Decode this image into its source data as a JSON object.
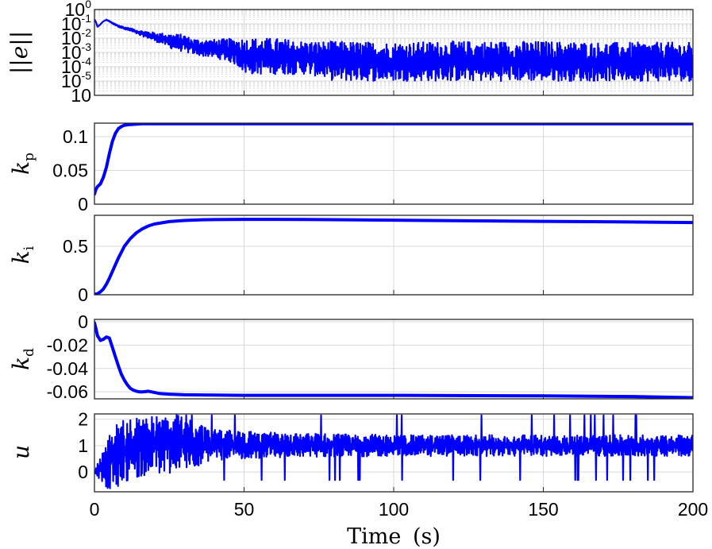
{
  "figure": {
    "xlabel": "Time",
    "xlabel_unit": "(s)"
  },
  "chart_data": [
    {
      "type": "line",
      "ylabel": "||e||",
      "yscale": "log",
      "xlim": [
        0,
        200
      ],
      "ylim": [
        1e-06,
        1
      ],
      "yticks": [
        {
          "base": "10",
          "exp": "0"
        },
        {
          "base": "10",
          "exp": "-1"
        },
        {
          "base": "10",
          "exp": "-2"
        },
        {
          "base": "10",
          "exp": "-3"
        },
        {
          "base": "10",
          "exp": "-4"
        },
        {
          "base": "10",
          "exp": "-5"
        },
        {
          "base": "10",
          "exp": ""
        }
      ],
      "grid": true,
      "color": "#0000ff",
      "series": [
        {
          "style": "dense-oscillation",
          "envelope_upper": {
            "x": [
              0,
              1,
              2,
              3,
              4,
              6,
              8,
              10,
              15,
              20,
              25,
              30,
              32,
              35,
              40,
              50,
              60,
              70,
              80,
              100,
              120,
              150,
              170,
              200
            ],
            "y": [
              0.2,
              0.06,
              0.09,
              0.15,
              0.2,
              0.12,
              0.08,
              0.06,
              0.035,
              0.025,
              0.02,
              0.018,
              0.01,
              0.008,
              0.008,
              0.01,
              0.01,
              0.006,
              0.006,
              0.005,
              0.006,
              0.006,
              0.005,
              0.005
            ]
          },
          "envelope_lower": {
            "x": [
              0,
              1,
              2,
              3,
              4,
              6,
              8,
              10,
              15,
              20,
              25,
              30,
              35,
              40,
              50,
              60,
              70,
              80,
              100,
              120,
              150,
              170,
              200
            ],
            "y": [
              0.2,
              0.06,
              0.09,
              0.15,
              0.18,
              0.1,
              0.06,
              0.04,
              0.015,
              0.006,
              0.002,
              0.001,
              0.0006,
              0.0004,
              3e-05,
              3e-05,
              3e-05,
              1e-05,
              1e-05,
              1e-05,
              1e-05,
              1e-05,
              1e-05
            ]
          }
        }
      ]
    },
    {
      "type": "line",
      "ylabel": "k",
      "ylabel_sub": "p",
      "xlim": [
        0,
        200
      ],
      "ylim": [
        0,
        0.12
      ],
      "yticks": [
        {
          "value": 0,
          "label": "0"
        },
        {
          "value": 0.05,
          "label": "0.05"
        },
        {
          "value": 0.1,
          "label": "0.1"
        }
      ],
      "grid": true,
      "color": "#0000ff",
      "series": [
        {
          "x": [
            0,
            0.5,
            1,
            2,
            3,
            4,
            5,
            6,
            7,
            8,
            9,
            10,
            12,
            14,
            16,
            18,
            20,
            30,
            50,
            100,
            150,
            200
          ],
          "y": [
            0.015,
            0.022,
            0.026,
            0.03,
            0.04,
            0.055,
            0.075,
            0.093,
            0.105,
            0.112,
            0.115,
            0.117,
            0.118,
            0.1185,
            0.119,
            0.119,
            0.119,
            0.119,
            0.119,
            0.119,
            0.119,
            0.119
          ]
        }
      ]
    },
    {
      "type": "line",
      "ylabel": "k",
      "ylabel_sub": "i",
      "xlim": [
        0,
        200
      ],
      "ylim": [
        0,
        0.82
      ],
      "yticks": [
        {
          "value": 0,
          "label": "0"
        },
        {
          "value": 0.5,
          "label": "0.5"
        }
      ],
      "grid": true,
      "color": "#0000ff",
      "series": [
        {
          "x": [
            0,
            1,
            2,
            3,
            4,
            5,
            6,
            7,
            8,
            10,
            12,
            14,
            16,
            18,
            20,
            25,
            30,
            35,
            40,
            50,
            60,
            70,
            80,
            100,
            120,
            150,
            175,
            200
          ],
          "y": [
            0.005,
            0.01,
            0.03,
            0.06,
            0.11,
            0.17,
            0.24,
            0.31,
            0.38,
            0.5,
            0.58,
            0.64,
            0.68,
            0.71,
            0.73,
            0.755,
            0.767,
            0.773,
            0.776,
            0.778,
            0.778,
            0.777,
            0.775,
            0.77,
            0.765,
            0.758,
            0.752,
            0.745
          ]
        }
      ]
    },
    {
      "type": "line",
      "ylabel": "k",
      "ylabel_sub": "d",
      "xlim": [
        0,
        200
      ],
      "ylim": [
        -0.066,
        0.002
      ],
      "yticks": [
        {
          "value": 0,
          "label": "0"
        },
        {
          "value": -0.02,
          "label": "-0.02"
        },
        {
          "value": -0.04,
          "label": "-0.04"
        },
        {
          "value": -0.06,
          "label": "-0.06"
        }
      ],
      "grid": true,
      "color": "#0000ff",
      "series": [
        {
          "x": [
            0,
            0.5,
            1,
            1.5,
            2,
            3,
            4,
            5,
            6,
            7,
            8,
            9,
            10,
            11,
            12,
            13,
            14,
            15,
            16,
            17,
            18,
            20,
            22,
            25,
            30,
            40,
            50,
            70,
            100,
            120,
            150,
            180,
            200
          ],
          "y": [
            -0.001,
            -0.006,
            -0.012,
            -0.014,
            -0.016,
            -0.015,
            -0.013,
            -0.014,
            -0.022,
            -0.03,
            -0.038,
            -0.045,
            -0.05,
            -0.054,
            -0.057,
            -0.0585,
            -0.0595,
            -0.06,
            -0.06,
            -0.0598,
            -0.0595,
            -0.0605,
            -0.0615,
            -0.062,
            -0.0625,
            -0.0628,
            -0.063,
            -0.063,
            -0.063,
            -0.0632,
            -0.0635,
            -0.064,
            -0.065
          ]
        }
      ]
    },
    {
      "type": "line",
      "ylabel": "u",
      "xlim": [
        0,
        200
      ],
      "ylim": [
        -0.75,
        2.2
      ],
      "yticks": [
        {
          "value": 0,
          "label": "0"
        },
        {
          "value": 1,
          "label": "1"
        },
        {
          "value": 2,
          "label": "2"
        }
      ],
      "xticks": [
        {
          "value": 0,
          "label": "0"
        },
        {
          "value": 50,
          "label": "50"
        },
        {
          "value": 100,
          "label": "100"
        },
        {
          "value": 150,
          "label": "150"
        },
        {
          "value": 200,
          "label": "200"
        }
      ],
      "grid": true,
      "color": "#0000ff",
      "series": [
        {
          "style": "dense-oscillation",
          "center": 1.0,
          "envelope_upper": {
            "x": [
              0,
              2,
              4,
              6,
              8,
              10,
              15,
              20,
              30,
              40,
              60,
              100,
              150,
              200
            ],
            "y": [
              0.05,
              0.6,
              1.2,
              1.6,
              1.9,
              2.0,
              2.1,
              2.15,
              2.2,
              1.6,
              1.5,
              1.4,
              1.4,
              1.4
            ]
          },
          "envelope_lower": {
            "x": [
              0,
              2,
              4,
              6,
              8,
              10,
              15,
              20,
              30,
              40,
              60,
              100,
              150,
              200
            ],
            "y": [
              -0.05,
              -0.3,
              -0.6,
              -0.7,
              -0.55,
              -0.35,
              -0.2,
              -0.1,
              0.0,
              0.45,
              0.55,
              0.6,
              0.6,
              0.6
            ]
          }
        }
      ]
    }
  ]
}
